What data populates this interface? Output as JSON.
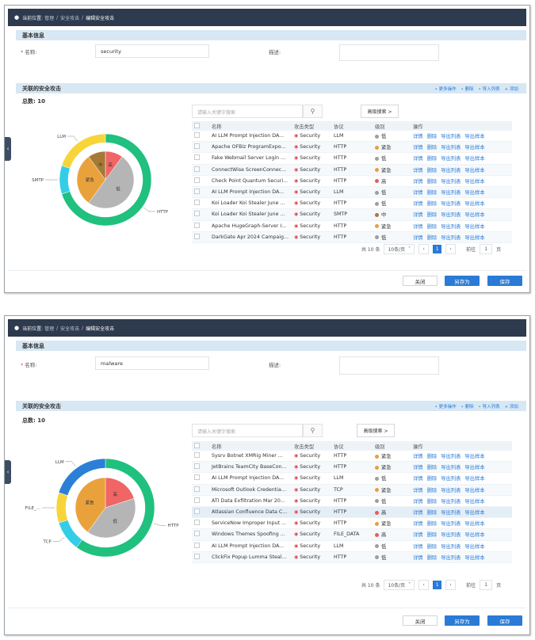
{
  "colors": {
    "accent": "#2a7ad6",
    "topbar": "#2e3a4d",
    "section": "#d7e7f3"
  },
  "panels": [
    {
      "breadcrumb": {
        "prefix": "当前位置:",
        "items": [
          "管理",
          "安全攻击"
        ],
        "current": "编辑安全攻击"
      },
      "basic": {
        "title": "基本信息",
        "name_label": "名称:",
        "name_value": "security",
        "desc_label": "描述:",
        "desc_value": ""
      },
      "related": {
        "title": "关联的安全攻击",
        "actions": [
          "更多操作",
          "删除",
          "导入列表",
          "添加"
        ],
        "total": "总数: 10",
        "search_placeholder": "请输入关键字搜索",
        "adv_search": "高级搜索 >",
        "columns": [
          "名称",
          "攻击类型",
          "协议",
          "级别",
          "操作"
        ],
        "ops": [
          "详情",
          "删除",
          "导出列表",
          "导出样本"
        ],
        "rows": [
          {
            "name": "AI LLM Prompt Injection DA...",
            "type": "Security",
            "protocol": "LLM",
            "level": "低",
            "lc": "#9e9e9e"
          },
          {
            "name": "Apache OFBiz ProgramExpo...",
            "type": "Security",
            "protocol": "HTTP",
            "level": "紧急",
            "lc": "#e6a13a"
          },
          {
            "name": "Fake Webmail Server Login ...",
            "type": "Security",
            "protocol": "HTTP",
            "level": "低",
            "lc": "#9e9e9e"
          },
          {
            "name": "ConnectWise ScreenConnec...",
            "type": "Security",
            "protocol": "HTTP",
            "level": "紧急",
            "lc": "#e6a13a"
          },
          {
            "name": "Check Point Quantum Securi...",
            "type": "Security",
            "protocol": "HTTP",
            "level": "高",
            "lc": "#e85c5c"
          },
          {
            "name": "AI LLM Prompt Injection DA...",
            "type": "Security",
            "protocol": "LLM",
            "level": "低",
            "lc": "#9e9e9e"
          },
          {
            "name": "Koi Loader Koi Stealer June ...",
            "type": "Security",
            "protocol": "HTTP",
            "level": "低",
            "lc": "#9e9e9e"
          },
          {
            "name": "Koi Loader Koi Stealer June ...",
            "type": "Security",
            "protocol": "SMTP",
            "level": "中",
            "lc": "#a77a3a"
          },
          {
            "name": "Apache HugeGraph-Server I...",
            "type": "Security",
            "protocol": "HTTP",
            "level": "紧急",
            "lc": "#e6a13a"
          },
          {
            "name": "DarkGate Apr 2024 Campaig...",
            "type": "Security",
            "protocol": "HTTP",
            "level": "低",
            "lc": "#9e9e9e"
          }
        ],
        "pager": {
          "total": "共 10 条",
          "size": "10条/页",
          "page": "1",
          "goto": "前往",
          "goto_val": "1",
          "unit": "页"
        }
      },
      "buttons": {
        "close": "关闭",
        "save_as": "另存为",
        "save": "保存"
      }
    },
    {
      "breadcrumb": {
        "prefix": "当前位置:",
        "items": [
          "管理",
          "安全攻击"
        ],
        "current": "编辑安全攻击"
      },
      "basic": {
        "title": "基本信息",
        "name_label": "名称:",
        "name_value": "malware",
        "desc_label": "描述:",
        "desc_value": ""
      },
      "related": {
        "title": "关联的安全攻击",
        "actions": [
          "更多操作",
          "删除",
          "导入列表",
          "添加"
        ],
        "total": "总数: 10",
        "search_placeholder": "请输入关键字搜索",
        "adv_search": "高级搜索 >",
        "columns": [
          "名称",
          "攻击类型",
          "协议",
          "级别",
          "操作"
        ],
        "ops": [
          "详情",
          "删除",
          "导出列表",
          "导出样本"
        ],
        "rows": [
          {
            "name": "Sysrv Botnet XMRig Miner ...",
            "type": "Security",
            "protocol": "HTTP",
            "level": "紧急",
            "lc": "#e6a13a"
          },
          {
            "name": "JetBrains TeamCity BaseCon...",
            "type": "Security",
            "protocol": "HTTP",
            "level": "紧急",
            "lc": "#e6a13a"
          },
          {
            "name": "AI LLM Prompt Injection DA...",
            "type": "Security",
            "protocol": "LLM",
            "level": "低",
            "lc": "#9e9e9e"
          },
          {
            "name": "Microsoft Outlook Credentia...",
            "type": "Security",
            "protocol": "TCP",
            "level": "紧急",
            "lc": "#e6a13a"
          },
          {
            "name": "ATI Data Exfiltration Mar 20...",
            "type": "Security",
            "protocol": "HTTP",
            "level": "低",
            "lc": "#9e9e9e"
          },
          {
            "name": "Atlassian Confluence Data C...",
            "type": "Security",
            "protocol": "HTTP",
            "level": "高",
            "lc": "#e85c5c"
          },
          {
            "name": "ServiceNow Improper Input ...",
            "type": "Security",
            "protocol": "HTTP",
            "level": "紧急",
            "lc": "#e6a13a"
          },
          {
            "name": "Windows Themes Spoofing ...",
            "type": "Security",
            "protocol": "FILE_DATA",
            "level": "高",
            "lc": "#e85c5c"
          },
          {
            "name": "AI LLM Prompt Injection DA...",
            "type": "Security",
            "protocol": "LLM",
            "level": "低",
            "lc": "#9e9e9e"
          },
          {
            "name": "ClickFix Popup Lumma Steal...",
            "type": "Security",
            "protocol": "HTTP",
            "level": "低",
            "lc": "#9e9e9e"
          }
        ],
        "pager": {
          "total": "共 10 条",
          "size": "10条/页",
          "page": "1",
          "goto": "前往",
          "goto_val": "1",
          "unit": "页"
        }
      },
      "buttons": {
        "close": "关闭",
        "save_as": "另存为",
        "save": "保存"
      }
    }
  ],
  "chart_data": [
    {
      "type": "pie",
      "title": "",
      "outer_ring": [
        {
          "name": "HTTP",
          "value": 7,
          "color": "#20c07f"
        },
        {
          "name": "SMTP",
          "value": 1,
          "color": "#33cde8"
        },
        {
          "name": "LLM",
          "value": 2,
          "color": "#f7d43a"
        }
      ],
      "inner_pie": [
        {
          "name": "高",
          "value": 1,
          "color": "#f06565"
        },
        {
          "name": "低",
          "value": 5,
          "color": "#b5b5b5"
        },
        {
          "name": "紧急",
          "value": 3,
          "color": "#e9a23b"
        },
        {
          "name": "中",
          "value": 1,
          "color": "#a57a36"
        }
      ]
    },
    {
      "type": "pie",
      "title": "",
      "outer_ring": [
        {
          "name": "HTTP",
          "value": 6,
          "color": "#20c07f"
        },
        {
          "name": "TCP",
          "value": 1,
          "color": "#33cde8"
        },
        {
          "name": "FILE_...",
          "value": 1,
          "color": "#f7d43a"
        },
        {
          "name": "LLM",
          "value": 2,
          "color": "#2b7fd6"
        }
      ],
      "inner_pie": [
        {
          "name": "高",
          "value": 2,
          "color": "#f06565"
        },
        {
          "name": "低",
          "value": 4,
          "color": "#b5b5b5"
        },
        {
          "name": "紧急",
          "value": 4,
          "color": "#e9a23b"
        }
      ]
    }
  ]
}
